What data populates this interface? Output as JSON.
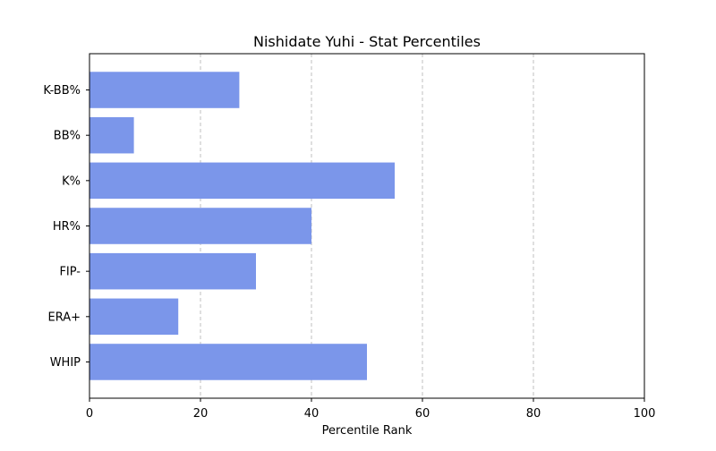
{
  "chart_data": {
    "type": "bar",
    "orientation": "horizontal",
    "title": "Nishidate Yuhi - Stat Percentiles",
    "xlabel": "Percentile Rank",
    "ylabel": "",
    "xlim": [
      0,
      100
    ],
    "xticks": [
      0,
      20,
      40,
      60,
      80,
      100
    ],
    "grid": "x-dashed",
    "categories": [
      "K-BB%",
      "BB%",
      "K%",
      "HR%",
      "FIP-",
      "ERA+",
      "WHIP"
    ],
    "values": [
      27,
      8,
      55,
      40,
      30,
      16,
      50
    ],
    "bar_color": "#7b96ea"
  }
}
